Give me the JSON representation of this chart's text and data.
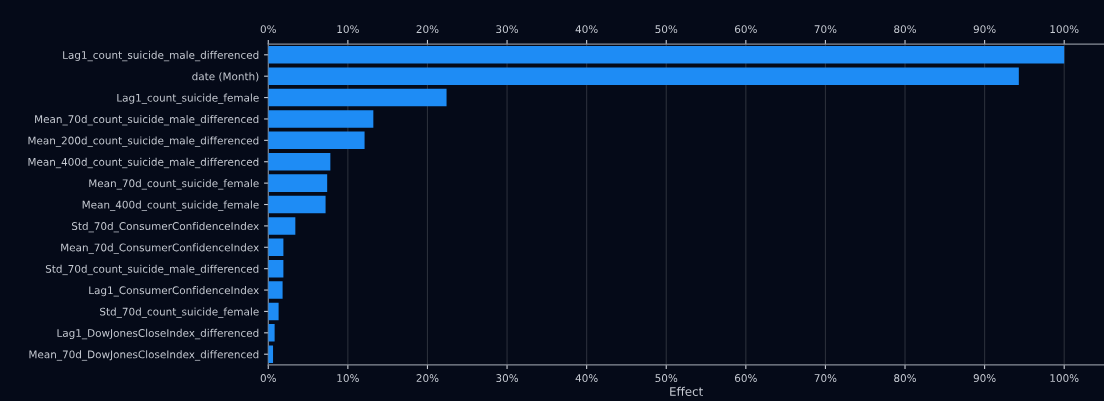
{
  "chart_data": {
    "type": "bar",
    "orientation": "horizontal",
    "xlabel": "Effect",
    "categories": [
      "Lag1_count_suicide_male_differenced",
      "date (Month)",
      "Lag1_count_suicide_female",
      "Mean_70d_count_suicide_male_differenced",
      "Mean_200d_count_suicide_male_differenced",
      "Mean_400d_count_suicide_male_differenced",
      "Mean_70d_count_suicide_female",
      "Mean_400d_count_suicide_female",
      "Std_70d_ConsumerConfidenceIndex",
      "Mean_70d_ConsumerConfidenceIndex",
      "Std_70d_count_suicide_male_differenced",
      "Lag1_ConsumerConfidenceIndex",
      "Std_70d_count_suicide_female",
      "Lag1_DowJonesCloseIndex_differenced",
      "Mean_70d_DowJonesCloseIndex_differenced"
    ],
    "values": [
      100,
      94.3,
      22.4,
      13.2,
      12.1,
      7.8,
      7.4,
      7.2,
      3.4,
      1.9,
      1.9,
      1.8,
      1.3,
      0.8,
      0.6
    ],
    "color": "#1e8cf5",
    "xlim": [
      0,
      105
    ],
    "xticks": [
      {
        "value": 0,
        "label": "0%"
      },
      {
        "value": 10,
        "label": "10%"
      },
      {
        "value": 20,
        "label": "20%"
      },
      {
        "value": 30,
        "label": "30%"
      },
      {
        "value": 40,
        "label": "40%"
      },
      {
        "value": 50,
        "label": "50%"
      },
      {
        "value": 60,
        "label": "60%"
      },
      {
        "value": 70,
        "label": "70%"
      },
      {
        "value": 80,
        "label": "80%"
      },
      {
        "value": 90,
        "label": "90%"
      },
      {
        "value": 100,
        "label": "100%"
      }
    ],
    "x2lim": [
      0,
      105
    ],
    "x2ticks": [
      {
        "value": 0,
        "label": "0%"
      },
      {
        "value": 10,
        "label": "10%"
      },
      {
        "value": 20,
        "label": "20%"
      },
      {
        "value": 30,
        "label": "30%"
      },
      {
        "value": 40,
        "label": "40%"
      },
      {
        "value": 50,
        "label": "50%"
      },
      {
        "value": 60,
        "label": "60%"
      },
      {
        "value": 70,
        "label": "70%"
      },
      {
        "value": 80,
        "label": "80%"
      },
      {
        "value": 90,
        "label": "90%"
      },
      {
        "value": 100,
        "label": "100%"
      }
    ],
    "grid": "x"
  }
}
